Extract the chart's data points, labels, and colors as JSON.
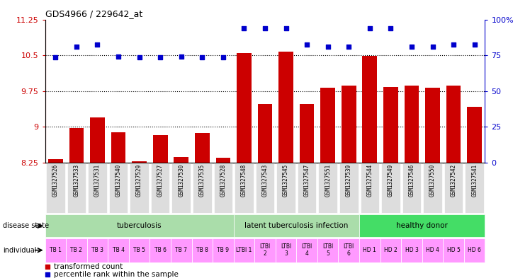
{
  "title": "GDS4966 / 229642_at",
  "gsm_labels": [
    "GSM1327526",
    "GSM1327533",
    "GSM1327531",
    "GSM1327540",
    "GSM1327529",
    "GSM1327527",
    "GSM1327530",
    "GSM1327535",
    "GSM1327528",
    "GSM1327548",
    "GSM1327543",
    "GSM1327545",
    "GSM1327547",
    "GSM1327551",
    "GSM1327539",
    "GSM1327544",
    "GSM1327549",
    "GSM1327546",
    "GSM1327550",
    "GSM1327542",
    "GSM1327541"
  ],
  "bar_values": [
    8.32,
    8.97,
    9.2,
    8.88,
    8.28,
    8.82,
    8.37,
    8.87,
    8.35,
    10.54,
    9.48,
    10.57,
    9.48,
    9.82,
    9.87,
    10.48,
    9.83,
    9.87,
    9.82,
    9.87,
    9.42
  ],
  "percentile_values": [
    10.45,
    10.68,
    10.72,
    10.47,
    10.45,
    10.45,
    10.47,
    10.45,
    10.45,
    11.07,
    11.07,
    11.07,
    10.72,
    10.68,
    10.68,
    11.07,
    11.07,
    10.68,
    10.68,
    10.72,
    10.72
  ],
  "bar_color": "#cc0000",
  "percentile_color": "#0000cc",
  "ylim_left": [
    8.25,
    11.25
  ],
  "yticks_left": [
    8.25,
    9.0,
    9.75,
    10.5,
    11.25
  ],
  "ytick_labels_left": [
    "8.25",
    "9",
    "9.75",
    "10.5",
    "11.25"
  ],
  "yticks_right_vals": [
    8.25,
    9.0,
    9.75,
    10.5,
    11.25
  ],
  "ytick_labels_right": [
    "0",
    "25",
    "50",
    "75",
    "100%"
  ],
  "hlines": [
    9.0,
    9.75,
    10.5
  ],
  "disease_groups": [
    {
      "label": "tuberculosis",
      "start": 0,
      "end": 9,
      "color": "#aaddaa"
    },
    {
      "label": "latent tuberculosis infection",
      "start": 9,
      "end": 15,
      "color": "#aaddaa"
    },
    {
      "label": "healthy donor",
      "start": 15,
      "end": 21,
      "color": "#44dd66"
    }
  ],
  "individual_labels": [
    "TB 1",
    "TB 2",
    "TB 3",
    "TB 4",
    "TB 5",
    "TB 6",
    "TB 7",
    "TB 8",
    "TB 9",
    "LTBI 1",
    "LTBI\n2",
    "LTBI\n3",
    "LTBI\n4",
    "LTBI\n5",
    "LTBI\n6",
    "HD 1",
    "HD 2",
    "HD 3",
    "HD 4",
    "HD 5",
    "HD 6"
  ],
  "individual_colors": [
    "#ff99ff",
    "#ff99ff",
    "#ff99ff",
    "#ff99ff",
    "#ff99ff",
    "#ff99ff",
    "#ff99ff",
    "#ff99ff",
    "#ff99ff",
    "#ff99ff",
    "#ff99ff",
    "#ff99ff",
    "#ff99ff",
    "#ff99ff",
    "#ff99ff",
    "#ff99ff",
    "#ff99ff",
    "#ff99ff",
    "#ff99ff",
    "#ff99ff",
    "#ff99ff"
  ],
  "legend_items": [
    {
      "label": "transformed count",
      "color": "#cc0000"
    },
    {
      "label": "percentile rank within the sample",
      "color": "#0000cc"
    }
  ],
  "disease_state_label": "disease state",
  "individual_label": "individual",
  "plot_bg": "#ffffff",
  "gsm_box_color": "#dddddd"
}
